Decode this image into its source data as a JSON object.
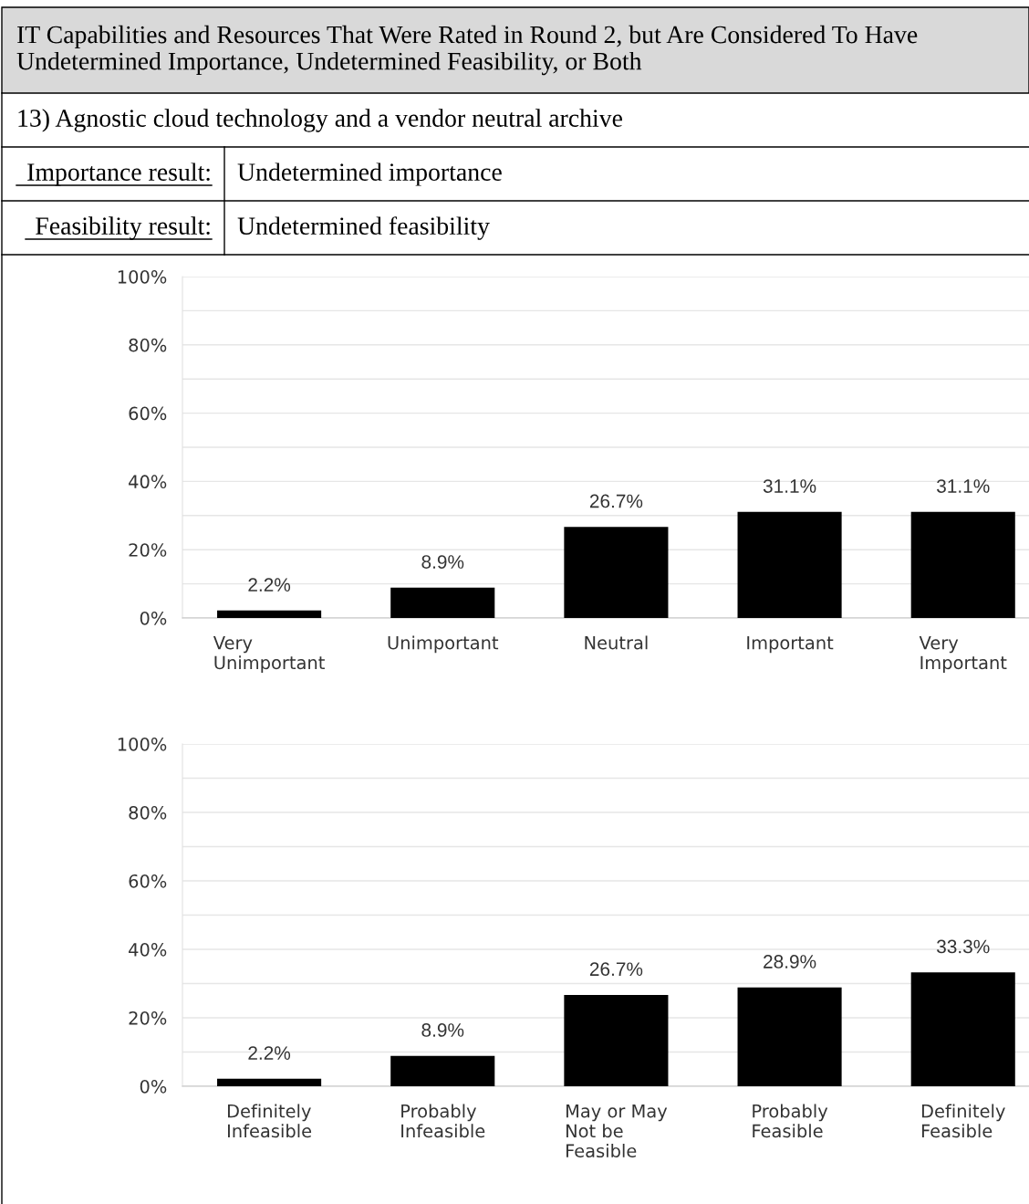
{
  "chart_data": [
    {
      "type": "bar",
      "title": "IT Capabilities and Resources That Were Rated in Round 2, but Are Considered To Have Undetermined Importance, Undetermined Feasibility, or Both",
      "subtitle": "13) Agnostic cloud technology and a vendor neutral archive",
      "annotations": [
        "Importance result:",
        "Undetermined importance",
        "Feasibility result:",
        "Undetermined feasibility"
      ],
      "categories": [
        "Very\nUnimportant",
        "Unimportant",
        "Neutral",
        "Important",
        "Very\nImportant"
      ],
      "values": [
        2.2,
        8.9,
        26.7,
        31.1,
        31.1
      ],
      "color": "#000000",
      "value_labels": [
        "2.2%",
        "8.9%",
        "26.7%",
        "31.1%",
        "31.1%"
      ],
      "ylim": [
        0,
        100
      ],
      "yticks": [
        {
          "value": 0,
          "label": "0%"
        },
        {
          "value": 10,
          "label": null
        },
        {
          "value": 20,
          "label": "20%"
        },
        {
          "value": 30,
          "label": null
        },
        {
          "value": 40,
          "label": "40%"
        },
        {
          "value": 50,
          "label": null
        },
        {
          "value": 60,
          "label": "60%"
        },
        {
          "value": 70,
          "label": null
        },
        {
          "value": 80,
          "label": "80%"
        },
        {
          "value": 90,
          "label": null
        },
        {
          "value": 100,
          "label": "100%"
        }
      ],
      "grid": "y"
    },
    {
      "type": "bar",
      "categories": [
        "Definitely\nInfeasible",
        "Probably\nInfeasible",
        "May or May\nNot be\nFeasible",
        "Probably\nFeasible",
        "Definitely\nFeasible"
      ],
      "values": [
        2.2,
        8.9,
        26.7,
        28.9,
        33.3
      ],
      "color": "#000000",
      "value_labels": [
        "2.2%",
        "8.9%",
        "26.7%",
        "28.9%",
        "33.3%"
      ],
      "ylim": [
        0,
        100
      ],
      "yticks": [
        {
          "value": 0,
          "label": "0%"
        },
        {
          "value": 10,
          "label": null
        },
        {
          "value": 20,
          "label": "20%"
        },
        {
          "value": 30,
          "label": null
        },
        {
          "value": 40,
          "label": "40%"
        },
        {
          "value": 50,
          "label": null
        },
        {
          "value": 60,
          "label": "60%"
        },
        {
          "value": 70,
          "label": null
        },
        {
          "value": 80,
          "label": "80%"
        },
        {
          "value": 90,
          "label": null
        },
        {
          "value": 100,
          "label": "100%"
        }
      ],
      "grid": "y"
    }
  ]
}
